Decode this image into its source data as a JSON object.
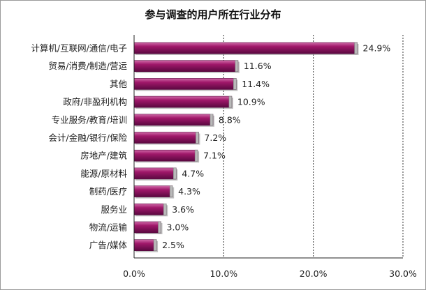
{
  "chart_data": {
    "type": "bar",
    "orientation": "horizontal",
    "title": "参与调查的用户所在行业分布",
    "categories": [
      "计算机/互联网/通信/电子",
      "贸易/消费/制造/营运",
      "其他",
      "政府/非盈利机构",
      "专业服务/教育/培训",
      "会计/金融/银行/保险",
      "房地产/建筑",
      "能源/原材料",
      "制药/医疗",
      "服务业",
      "物流/运输",
      "广告/媒体"
    ],
    "values": [
      24.9,
      11.6,
      11.4,
      10.9,
      8.8,
      7.2,
      7.1,
      4.7,
      4.3,
      3.6,
      3.0,
      2.5
    ],
    "value_labels": [
      "24.9%",
      "11.6%",
      "11.4%",
      "10.9%",
      "8.8%",
      "7.2%",
      "7.1%",
      "4.7%",
      "4.3%",
      "3.6%",
      "3.0%",
      "2.5%"
    ],
    "xlim": [
      0,
      30
    ],
    "x_ticks": [
      0,
      10,
      20,
      30
    ],
    "x_tick_labels": [
      "0.0%",
      "10.0%",
      "20.0%",
      "30.0%"
    ],
    "xlabel": "",
    "ylabel": "",
    "grid": "vertical dashed",
    "legend": "none",
    "bar_color": "#a0186a",
    "bar_color_dark": "#5a0840",
    "bar_color_light": "#d06aa8"
  }
}
